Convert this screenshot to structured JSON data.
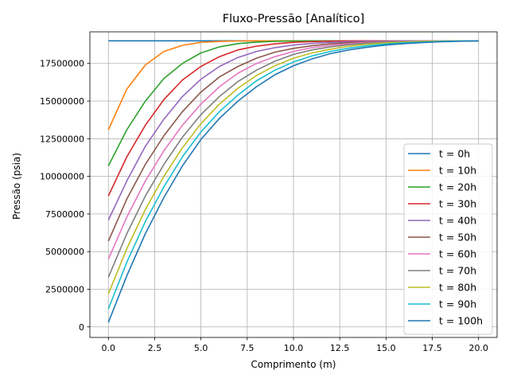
{
  "chart_data": {
    "type": "line",
    "title": "Fluxo-Pressão [Analítico]",
    "xlabel": "Comprimento (m)",
    "ylabel": "Pressão (psia)",
    "xlim": [
      -1.0,
      21.0
    ],
    "ylim": [
      -700000,
      19600000
    ],
    "xticks": [
      0.0,
      2.5,
      5.0,
      7.5,
      10.0,
      12.5,
      15.0,
      17.5,
      20.0
    ],
    "xtick_labels": [
      "0.0",
      "2.5",
      "5.0",
      "7.5",
      "10.0",
      "12.5",
      "15.0",
      "17.5",
      "20.0"
    ],
    "yticks": [
      0,
      2500000,
      5000000,
      7500000,
      10000000,
      12500000,
      15000000,
      17500000
    ],
    "ytick_labels": [
      "0",
      "2500000",
      "5000000",
      "7500000",
      "10000000",
      "12500000",
      "15000000",
      "17500000"
    ],
    "grid": true,
    "legend_position": "lower-right",
    "x": [
      0,
      1,
      2,
      3,
      4,
      5,
      6,
      7,
      8,
      9,
      10,
      11,
      12,
      13,
      14,
      15,
      16,
      17,
      18,
      19,
      20
    ],
    "series": [
      {
        "name": "t = 0h",
        "color": "#1f77b4",
        "values": [
          19000000,
          19000000,
          19000000,
          19000000,
          19000000,
          19000000,
          19000000,
          19000000,
          19000000,
          19000000,
          19000000,
          19000000,
          19000000,
          19000000,
          19000000,
          19000000,
          19000000,
          19000000,
          19000000,
          19000000,
          19000000
        ]
      },
      {
        "name": "t = 10h",
        "color": "#ff7f0e",
        "values": [
          13100000,
          15800000,
          17400000,
          18300000,
          18700000,
          18900000,
          18960000,
          18990000,
          19000000,
          19000000,
          19000000,
          19000000,
          19000000,
          19000000,
          19000000,
          19000000,
          19000000,
          19000000,
          19000000,
          19000000,
          19000000
        ]
      },
      {
        "name": "t = 20h",
        "color": "#2ca02c",
        "values": [
          10700000,
          13100000,
          15000000,
          16500000,
          17500000,
          18200000,
          18600000,
          18820000,
          18920000,
          18970000,
          18990000,
          19000000,
          19000000,
          19000000,
          19000000,
          19000000,
          19000000,
          19000000,
          19000000,
          19000000,
          19000000
        ]
      },
      {
        "name": "t = 30h",
        "color": "#d62728",
        "values": [
          8700000,
          11300000,
          13400000,
          15100000,
          16400000,
          17300000,
          17950000,
          18400000,
          18650000,
          18800000,
          18900000,
          18950000,
          18980000,
          19000000,
          19000000,
          19000000,
          19000000,
          19000000,
          19000000,
          19000000,
          19000000
        ]
      },
      {
        "name": "t = 40h",
        "color": "#9467bd",
        "values": [
          7100000,
          9700000,
          12000000,
          13800000,
          15300000,
          16450000,
          17300000,
          17900000,
          18300000,
          18550000,
          18720000,
          18830000,
          18900000,
          18950000,
          18975000,
          18990000,
          19000000,
          19000000,
          19000000,
          19000000,
          19000000
        ]
      },
      {
        "name": "t = 50h",
        "color": "#8c564b",
        "values": [
          5700000,
          8500000,
          10800000,
          12700000,
          14300000,
          15600000,
          16600000,
          17300000,
          17850000,
          18250000,
          18500000,
          18680000,
          18800000,
          18880000,
          18930000,
          18960000,
          18980000,
          18990000,
          19000000,
          19000000,
          19000000
        ]
      },
      {
        "name": "t = 60h",
        "color": "#e377c2",
        "values": [
          4500000,
          7300000,
          9700000,
          11700000,
          13400000,
          14800000,
          15950000,
          16850000,
          17500000,
          17950000,
          18300000,
          18550000,
          18700000,
          18820000,
          18890000,
          18940000,
          18970000,
          18985000,
          18995000,
          19000000,
          19000000
        ]
      },
      {
        "name": "t = 70h",
        "color": "#7f7f7f",
        "values": [
          3300000,
          6200000,
          8700000,
          10800000,
          12600000,
          14100000,
          15300000,
          16300000,
          17050000,
          17650000,
          18100000,
          18400000,
          18600000,
          18750000,
          18850000,
          18910000,
          18950000,
          18975000,
          18990000,
          19000000,
          19000000
        ]
      },
      {
        "name": "t = 80h",
        "color": "#bcbd22",
        "values": [
          2200000,
          5200000,
          7800000,
          10000000,
          11900000,
          13500000,
          14800000,
          15850000,
          16700000,
          17350000,
          17850000,
          18200000,
          18450000,
          18650000,
          18780000,
          18870000,
          18920000,
          18960000,
          18980000,
          18995000,
          19000000
        ]
      },
      {
        "name": "t = 90h",
        "color": "#17becf",
        "values": [
          1200000,
          4300000,
          7000000,
          9300000,
          11300000,
          12950000,
          14300000,
          15400000,
          16350000,
          17050000,
          17600000,
          18000000,
          18300000,
          18520000,
          18680000,
          18790000,
          18870000,
          18920000,
          18960000,
          18985000,
          19000000
        ]
      },
      {
        "name": "t = 100h",
        "color": "#1f77b4",
        "values": [
          300000,
          3400000,
          6200000,
          8600000,
          10700000,
          12450000,
          13850000,
          15000000,
          15950000,
          16750000,
          17350000,
          17800000,
          18150000,
          18400000,
          18580000,
          18720000,
          18820000,
          18890000,
          18940000,
          18975000,
          19000000
        ]
      }
    ]
  }
}
